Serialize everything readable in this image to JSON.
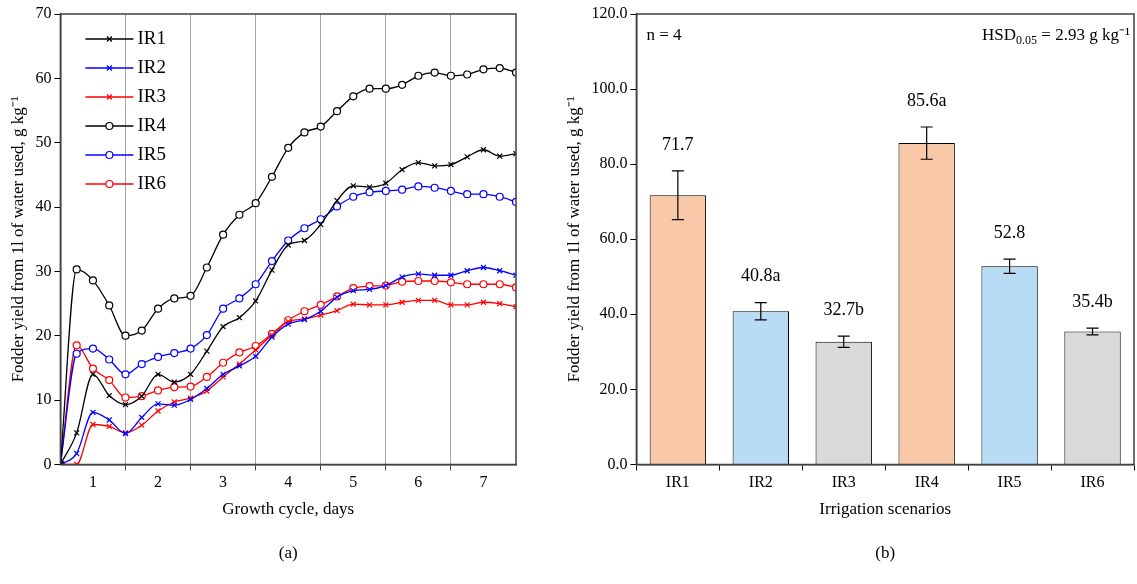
{
  "chart_data": [
    {
      "type": "line",
      "xlabel": "Growth cycle, days",
      "ylabel": "Fodder yield from 1l of water used, g kg⁻¹",
      "x": [
        0.5,
        0.75,
        1,
        1.25,
        1.5,
        1.75,
        2,
        2.25,
        2.5,
        2.75,
        3,
        3.25,
        3.5,
        3.75,
        4,
        4.25,
        4.5,
        4.75,
        5,
        5.25,
        5.5,
        5.75,
        6,
        6.25,
        6.5,
        6.75,
        7,
        7.25,
        7.5
      ],
      "series": [
        {
          "name": "IR1",
          "color": "#000000",
          "marker": "cross",
          "values": [
            0,
            4.9,
            14.0,
            10.7,
            9.3,
            10.6,
            14.0,
            12.8,
            14.0,
            17.6,
            21.4,
            22.8,
            25.4,
            30.2,
            34.1,
            34.8,
            37.3,
            41.0,
            43.3,
            43.1,
            43.7,
            45.8,
            46.9,
            46.4,
            46.6,
            47.8,
            48.9,
            47.9,
            48.3
          ]
        },
        {
          "name": "IR2",
          "color": "#0000ff",
          "marker": "cross",
          "values": [
            0,
            1.7,
            8.1,
            6.9,
            4.8,
            7.3,
            9.4,
            9.2,
            10.1,
            11.8,
            14.0,
            15.3,
            16.8,
            19.8,
            21.8,
            22.5,
            23.8,
            26.0,
            27.0,
            27.2,
            27.8,
            29.1,
            29.6,
            29.4,
            29.4,
            30.1,
            30.6,
            30.1,
            29.4
          ]
        },
        {
          "name": "IR3",
          "color": "#ff0000",
          "marker": "cross",
          "values": [
            0,
            0,
            6.2,
            5.9,
            4.9,
            6.1,
            8.3,
            9.7,
            10.3,
            11.4,
            13.6,
            15.6,
            17.8,
            20.1,
            22.2,
            22.6,
            23.2,
            23.9,
            24.9,
            24.8,
            24.8,
            25.2,
            25.5,
            25.5,
            24.8,
            24.8,
            25.2,
            25.0,
            24.5
          ]
        },
        {
          "name": "IR4",
          "color": "#000000",
          "marker": "circle",
          "values": [
            0,
            30.3,
            28.6,
            24.7,
            20.0,
            20.8,
            24.2,
            25.8,
            26.2,
            30.6,
            35.7,
            38.8,
            40.6,
            44.7,
            49.2,
            51.6,
            52.5,
            54.9,
            57.2,
            58.4,
            58.4,
            59.0,
            60.4,
            60.9,
            60.4,
            60.6,
            61.4,
            61.6,
            60.9
          ]
        },
        {
          "name": "IR5",
          "color": "#0000ff",
          "marker": "circle",
          "values": [
            0,
            17.2,
            18.0,
            16.3,
            14.0,
            15.6,
            16.7,
            17.3,
            18.0,
            20.1,
            24.2,
            25.8,
            28.0,
            31.6,
            34.8,
            36.7,
            38.1,
            40.1,
            41.6,
            42.3,
            42.5,
            42.7,
            43.2,
            43.0,
            42.5,
            42.0,
            42.0,
            41.6,
            40.8
          ]
        },
        {
          "name": "IR6",
          "color": "#ff0000",
          "marker": "circle",
          "values": [
            0,
            18.5,
            14.9,
            13.1,
            10.4,
            10.6,
            11.5,
            12.0,
            12.1,
            13.6,
            15.8,
            17.4,
            18.4,
            20.3,
            22.4,
            23.8,
            24.8,
            26.1,
            27.4,
            27.7,
            27.8,
            28.4,
            28.5,
            28.5,
            28.3,
            28.0,
            28.0,
            28.0,
            27.5
          ]
        }
      ],
      "xlim": [
        0.5,
        7.5
      ],
      "xticks": [
        {
          "value": 1,
          "label": "1"
        },
        {
          "value": 1.5,
          "label": null
        },
        {
          "value": 2,
          "label": "2"
        },
        {
          "value": 2.5,
          "label": null
        },
        {
          "value": 3,
          "label": "3"
        },
        {
          "value": 3.5,
          "label": null
        },
        {
          "value": 4,
          "label": "4"
        },
        {
          "value": 4.5,
          "label": null
        },
        {
          "value": 5,
          "label": "5"
        },
        {
          "value": 5.5,
          "label": null
        },
        {
          "value": 6,
          "label": "6"
        },
        {
          "value": 6.5,
          "label": null
        },
        {
          "value": 7,
          "label": "7"
        }
      ],
      "ylim": [
        0,
        70
      ],
      "yticks": [
        0,
        10,
        20,
        30,
        40,
        50,
        60,
        70
      ],
      "grid": "x",
      "line_style": "solid",
      "legend": "top left",
      "annotations": [
        "(a)"
      ]
    },
    {
      "type": "bar",
      "xlabel": "Irrigation scenarios",
      "ylabel": "Fodder yield from 1l of water used, g kg⁻¹",
      "categories": [
        "IR1",
        "IR2",
        "IR3",
        "IR4",
        "IR5",
        "IR6"
      ],
      "values": [
        71.7,
        40.8,
        32.7,
        85.6,
        52.8,
        35.4
      ],
      "colors": [
        "#f8c8a8",
        "#b7dcf4",
        "#d9d9d9",
        "#f8c8a8",
        "#b7dcf4",
        "#d9d9d9"
      ],
      "errors": [
        6.5,
        2.3,
        1.5,
        4.3,
        1.9,
        0.9
      ],
      "value_labels": [
        "71.7",
        "40.8a",
        "32.7b",
        "85.6a",
        "52.8",
        "35.4b"
      ],
      "ylim": [
        0,
        120
      ],
      "yticks": [
        {
          "value": 0,
          "label": "0.0"
        },
        {
          "value": 20,
          "label": "20.0"
        },
        {
          "value": 40,
          "label": "40.0"
        },
        {
          "value": 60,
          "label": "60.0"
        },
        {
          "value": 80,
          "label": "80.0"
        },
        {
          "value": 100,
          "label": "100.0"
        },
        {
          "value": 120,
          "label": "120.0"
        }
      ],
      "annotations": [
        "n = 4",
        "HSD$_{0.05}$ = 2.93 g kg⁻¹",
        "(b)"
      ]
    }
  ]
}
